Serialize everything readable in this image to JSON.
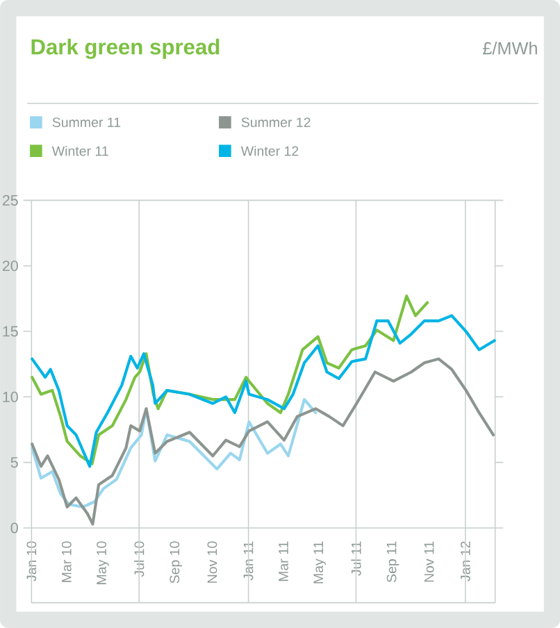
{
  "chart_data": {
    "type": "line",
    "title": "Dark green spread",
    "annotations": [
      "£/MWh"
    ],
    "xlim": [
      "2010-01-01",
      "2012-02-20"
    ],
    "xticks": [
      {
        "value": "2010-01-01",
        "label": "Jan 10"
      },
      {
        "value": "2010-03-01",
        "label": "Mar 10"
      },
      {
        "value": "2010-05-01",
        "label": "May 10"
      },
      {
        "value": "2010-07-01",
        "label": "Jul 10"
      },
      {
        "value": "2010-09-01",
        "label": "Sep 10"
      },
      {
        "value": "2010-11-01",
        "label": "Nov 10"
      },
      {
        "value": "2011-01-01",
        "label": "Jan 11"
      },
      {
        "value": "2011-03-01",
        "label": "Mar 11"
      },
      {
        "value": "2011-05-01",
        "label": "May 11"
      },
      {
        "value": "2011-07-01",
        "label": "Jul 11"
      },
      {
        "value": "2011-09-01",
        "label": "Sep 11"
      },
      {
        "value": "2011-11-01",
        "label": "Nov 11"
      },
      {
        "value": "2012-01-01",
        "label": "Jan 12"
      }
    ],
    "ylim": [
      0,
      25
    ],
    "yticks": [
      0,
      5,
      10,
      15,
      20,
      25
    ],
    "legend": "top left",
    "ref_lines": [
      {
        "axis": "x",
        "value": "2010-07-01",
        "color": "#c8cfcc"
      },
      {
        "axis": "x",
        "value": "2011-01-01",
        "color": "#c8cfcc"
      },
      {
        "axis": "x",
        "value": "2011-07-01",
        "color": "#c8cfcc"
      },
      {
        "axis": "x",
        "value": "2012-01-01",
        "color": "#c8cfcc"
      }
    ],
    "series": [
      {
        "name": "Summer 11",
        "color": "#9ad6ef",
        "x": [
          "2010-01-02",
          "2010-01-17",
          "2010-02-05",
          "2010-02-19",
          "2010-03-05",
          "2010-03-28",
          "2010-04-17",
          "2010-05-02",
          "2010-05-24",
          "2010-06-17",
          "2010-07-05",
          "2010-07-13",
          "2010-07-28",
          "2010-08-17",
          "2010-09-24",
          "2010-11-09",
          "2010-12-02",
          "2010-12-17",
          "2011-01-02",
          "2011-02-02",
          "2011-02-24",
          "2011-03-09",
          "2011-04-05",
          "2011-04-24"
        ],
        "values": [
          6.1,
          3.8,
          4.3,
          2.6,
          1.8,
          1.6,
          2.0,
          3.0,
          3.7,
          6.1,
          7.1,
          9.1,
          5.1,
          7.1,
          6.6,
          4.5,
          5.7,
          5.2,
          8.1,
          5.7,
          6.4,
          5.5,
          9.8,
          8.8
        ]
      },
      {
        "name": "Summer 12",
        "color": "#8c9590",
        "x": [
          "2010-01-02",
          "2010-01-17",
          "2010-01-28",
          "2010-02-16",
          "2010-03-02",
          "2010-03-17",
          "2010-04-05",
          "2010-04-14",
          "2010-04-24",
          "2010-05-17",
          "2010-06-09",
          "2010-06-17",
          "2010-07-02",
          "2010-07-13",
          "2010-07-28",
          "2010-08-17",
          "2010-09-24",
          "2010-11-02",
          "2010-11-24",
          "2010-12-17",
          "2011-01-02",
          "2011-02-02",
          "2011-03-02",
          "2011-03-24",
          "2011-04-24",
          "2011-05-17",
          "2011-06-09",
          "2011-07-02",
          "2011-08-02",
          "2011-09-02",
          "2011-10-02",
          "2011-10-24",
          "2011-11-17",
          "2011-12-09",
          "2012-01-02",
          "2012-01-24",
          "2012-02-17"
        ],
        "values": [
          6.4,
          4.7,
          5.5,
          3.7,
          1.6,
          2.3,
          1.1,
          0.3,
          3.3,
          4.0,
          6.1,
          7.8,
          7.4,
          9.1,
          5.7,
          6.6,
          7.3,
          5.5,
          6.7,
          6.2,
          7.4,
          8.1,
          6.7,
          8.5,
          9.1,
          8.5,
          7.8,
          9.5,
          11.9,
          11.2,
          11.9,
          12.6,
          12.9,
          12.1,
          10.5,
          8.8,
          7.1
        ]
      },
      {
        "name": "Winter 11",
        "color": "#7cc142",
        "x": [
          "2010-01-02",
          "2010-01-17",
          "2010-02-05",
          "2010-02-19",
          "2010-03-02",
          "2010-03-24",
          "2010-04-13",
          "2010-04-24",
          "2010-05-17",
          "2010-06-09",
          "2010-06-24",
          "2010-07-02",
          "2010-07-13",
          "2010-07-25",
          "2010-08-02",
          "2010-08-17",
          "2010-09-24",
          "2010-11-02",
          "2010-12-09",
          "2010-12-28",
          "2011-01-02",
          "2011-02-02",
          "2011-02-24",
          "2011-03-09",
          "2011-04-02",
          "2011-04-28",
          "2011-05-13",
          "2011-06-02",
          "2011-06-24",
          "2011-07-17",
          "2011-08-05",
          "2011-09-02",
          "2011-09-24",
          "2011-10-09",
          "2011-10-29"
        ],
        "values": [
          11.5,
          10.2,
          10.5,
          8.5,
          6.6,
          5.5,
          4.9,
          7.1,
          7.8,
          9.8,
          11.5,
          11.9,
          13.3,
          10.2,
          9.1,
          10.5,
          10.2,
          9.8,
          9.8,
          11.5,
          11.2,
          9.5,
          8.8,
          10.2,
          13.6,
          14.6,
          12.6,
          12.2,
          13.6,
          13.9,
          15.1,
          14.3,
          17.7,
          16.2,
          17.2
        ]
      },
      {
        "name": "Winter 12",
        "color": "#00b4e6",
        "x": [
          "2010-01-02",
          "2010-01-24",
          "2010-02-02",
          "2010-02-16",
          "2010-03-02",
          "2010-03-17",
          "2010-04-09",
          "2010-04-20",
          "2010-05-09",
          "2010-06-02",
          "2010-06-17",
          "2010-06-28",
          "2010-07-09",
          "2010-07-24",
          "2010-07-28",
          "2010-08-17",
          "2010-09-24",
          "2010-11-02",
          "2010-11-24",
          "2010-12-09",
          "2010-12-28",
          "2011-01-02",
          "2011-02-02",
          "2011-03-02",
          "2011-03-17",
          "2011-04-05",
          "2011-04-28",
          "2011-05-13",
          "2011-06-02",
          "2011-06-24",
          "2011-07-17",
          "2011-08-05",
          "2011-08-24",
          "2011-09-13",
          "2011-10-02",
          "2011-10-24",
          "2011-11-17",
          "2011-12-09",
          "2012-01-02",
          "2012-01-24",
          "2012-02-19"
        ],
        "values": [
          12.9,
          11.5,
          12.1,
          10.5,
          7.8,
          7.1,
          4.7,
          7.3,
          8.8,
          10.9,
          13.1,
          12.2,
          13.3,
          10.9,
          9.5,
          10.5,
          10.2,
          9.5,
          10.0,
          8.8,
          11.2,
          10.2,
          9.8,
          9.1,
          10.2,
          12.6,
          13.9,
          11.9,
          11.4,
          12.7,
          12.9,
          15.8,
          15.8,
          14.1,
          14.8,
          15.8,
          15.8,
          16.2,
          15.0,
          13.6,
          14.3
        ]
      }
    ]
  }
}
